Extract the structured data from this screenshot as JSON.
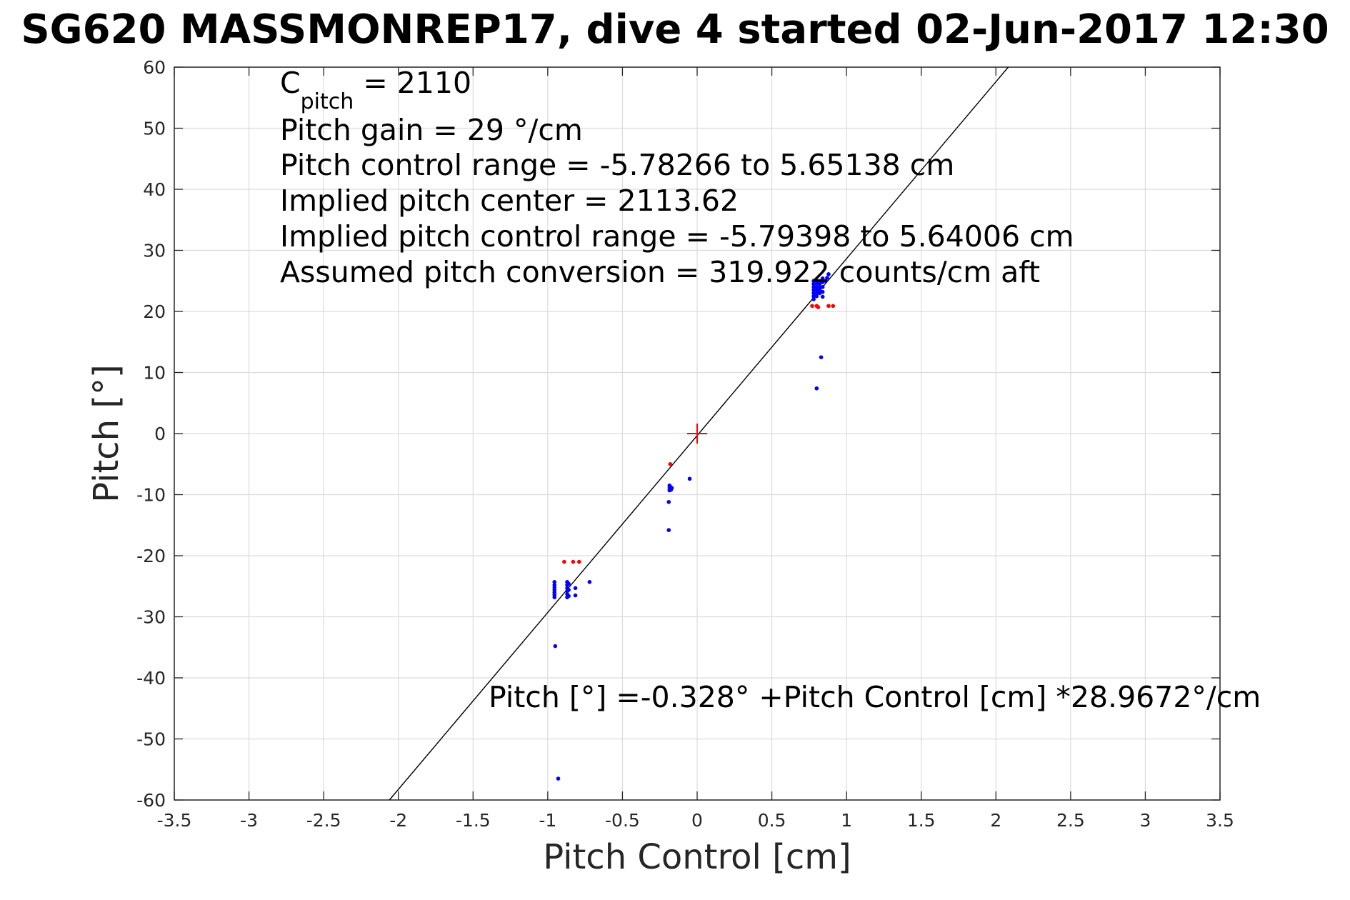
{
  "chart_data": {
    "type": "scatter",
    "title": "SG620 MASSMONREP17, dive 4 started 02-Jun-2017 12:30",
    "xlabel": "Pitch Control [cm]",
    "ylabel": "Pitch [°]",
    "xlim": [
      -3.5,
      3.5
    ],
    "ylim": [
      -60,
      60
    ],
    "x_ticks": [
      -3.5,
      -3,
      -2.5,
      -2,
      -1.5,
      -1,
      -0.5,
      0,
      0.5,
      1,
      1.5,
      2,
      2.5,
      3,
      3.5
    ],
    "x_tick_labels": [
      "-3.5",
      "-3",
      "-2.5",
      "-2",
      "-1.5",
      "-1",
      "-0.5",
      "0",
      "0.5",
      "1",
      "1.5",
      "2",
      "2.5",
      "3",
      "3.5"
    ],
    "y_ticks": [
      -60,
      -50,
      -40,
      -30,
      -20,
      -10,
      0,
      10,
      20,
      30,
      40,
      50,
      60
    ],
    "y_tick_labels": [
      "-60",
      "-50",
      "-40",
      "-30",
      "-20",
      "-10",
      "0",
      "10",
      "20",
      "30",
      "40",
      "50",
      "60"
    ],
    "grid": true,
    "annotations": {
      "c_pitch_prefix": "C",
      "c_pitch_sub": "pitch",
      "c_pitch_value": " = 2110",
      "lines": [
        "Pitch gain = 29 °/cm",
        "Pitch control range = -5.78266 to 5.65138 cm",
        "Implied pitch center = 2113.62",
        "Implied pitch control range = -5.79398 to 5.64006 cm",
        "Assumed pitch conversion = 319.922 counts/cm aft"
      ],
      "fit_equation": "Pitch [°] =-0.328° +Pitch Control [cm] *28.9672°/cm"
    },
    "fit_line": {
      "intercept": -0.328,
      "slope": 28.9672,
      "color": "#000000"
    },
    "center_marker": {
      "x": 0,
      "y": 0,
      "color": "#ff0000"
    },
    "series": [
      {
        "color": "#0000ff",
        "points": [
          [
            -0.955,
            -24.3
          ],
          [
            -0.955,
            -24.8
          ],
          [
            -0.955,
            -25.2
          ],
          [
            -0.955,
            -25.6
          ],
          [
            -0.955,
            -26.0
          ],
          [
            -0.955,
            -26.4
          ],
          [
            -0.955,
            -26.8
          ],
          [
            -0.87,
            -24.3
          ],
          [
            -0.87,
            -24.8
          ],
          [
            -0.87,
            -25.3
          ],
          [
            -0.87,
            -25.8
          ],
          [
            -0.87,
            -26.3
          ],
          [
            -0.87,
            -26.8
          ],
          [
            -0.86,
            -24.6
          ],
          [
            -0.86,
            -25.6
          ],
          [
            -0.86,
            -26.6
          ],
          [
            -0.815,
            -25.3
          ],
          [
            -0.815,
            -26.5
          ],
          [
            -0.72,
            -24.3
          ],
          [
            -0.95,
            -34.8
          ],
          [
            -0.93,
            -56.5
          ],
          [
            -0.185,
            -8.5
          ],
          [
            -0.185,
            -8.9
          ],
          [
            -0.185,
            -9.3
          ],
          [
            -0.18,
            -8.7
          ],
          [
            -0.17,
            -8.9
          ],
          [
            -0.175,
            -9.2
          ],
          [
            -0.19,
            -11.2
          ],
          [
            -0.19,
            -15.8
          ],
          [
            -0.05,
            -7.4
          ],
          [
            0.78,
            22.0
          ],
          [
            0.78,
            22.5
          ],
          [
            0.78,
            23.0
          ],
          [
            0.78,
            23.5
          ],
          [
            0.78,
            24.0
          ],
          [
            0.78,
            24.5
          ],
          [
            0.78,
            25.0
          ],
          [
            0.8,
            22.5
          ],
          [
            0.8,
            23.0
          ],
          [
            0.8,
            23.5
          ],
          [
            0.8,
            24.0
          ],
          [
            0.8,
            24.5
          ],
          [
            0.8,
            25.0
          ],
          [
            0.82,
            23.0
          ],
          [
            0.82,
            23.5
          ],
          [
            0.82,
            24.0
          ],
          [
            0.82,
            24.5
          ],
          [
            0.82,
            25.0
          ],
          [
            0.84,
            22.4
          ],
          [
            0.84,
            23.2
          ],
          [
            0.84,
            24.0
          ],
          [
            0.84,
            24.8
          ],
          [
            0.84,
            25.4
          ],
          [
            0.86,
            25.0
          ],
          [
            0.87,
            25.5
          ],
          [
            0.88,
            26.1
          ],
          [
            0.83,
            12.5
          ],
          [
            0.8,
            7.4
          ]
        ]
      },
      {
        "color": "#ff0000",
        "points": [
          [
            -0.89,
            -21.0
          ],
          [
            -0.83,
            -21.0
          ],
          [
            -0.79,
            -21.0
          ],
          [
            -0.18,
            -5.0
          ],
          [
            0.77,
            20.9
          ],
          [
            0.8,
            20.9
          ],
          [
            0.81,
            20.7
          ],
          [
            0.88,
            20.9
          ],
          [
            0.91,
            20.9
          ]
        ]
      }
    ]
  }
}
